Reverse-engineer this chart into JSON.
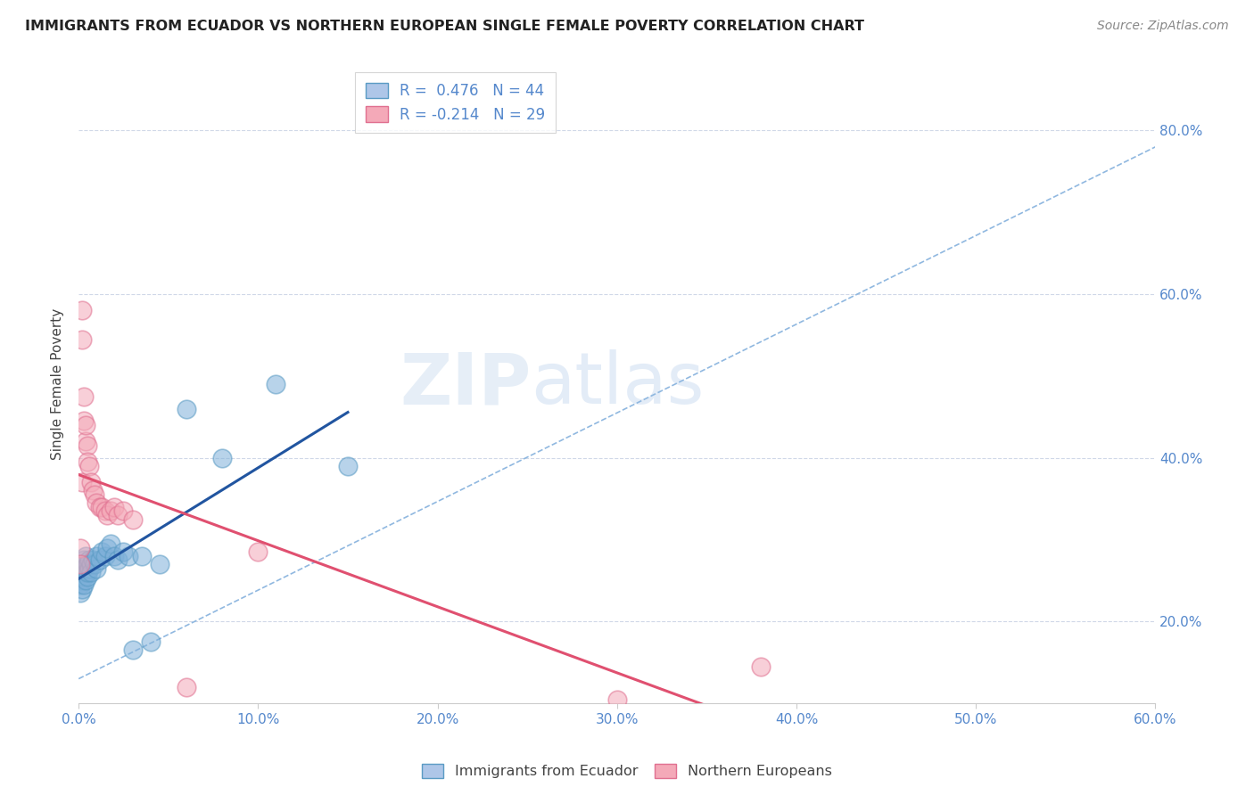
{
  "title": "IMMIGRANTS FROM ECUADOR VS NORTHERN EUROPEAN SINGLE FEMALE POVERTY CORRELATION CHART",
  "source": "Source: ZipAtlas.com",
  "ylabel": "Single Female Poverty",
  "legend1_label": "R =  0.476   N = 44",
  "legend2_label": "R = -0.214   N = 29",
  "legend1_fill_color": "#aec6e8",
  "legend2_fill_color": "#f4a9b8",
  "ecuador_dot_color": "#7eb0d9",
  "ecuador_edge_color": "#5a9bc4",
  "northern_dot_color": "#f4a9b8",
  "northern_edge_color": "#e07090",
  "watermark": "ZIPatlas",
  "xlim": [
    0.0,
    0.6
  ],
  "ylim": [
    0.1,
    0.88
  ],
  "y_ticks": [
    0.2,
    0.4,
    0.6,
    0.8
  ],
  "x_ticks": [
    0.0,
    0.1,
    0.2,
    0.3,
    0.4,
    0.5,
    0.6
  ],
  "ecuador_scatter": [
    [
      0.001,
      0.245
    ],
    [
      0.001,
      0.255
    ],
    [
      0.001,
      0.235
    ],
    [
      0.001,
      0.26
    ],
    [
      0.002,
      0.25
    ],
    [
      0.002,
      0.26
    ],
    [
      0.002,
      0.24
    ],
    [
      0.002,
      0.27
    ],
    [
      0.002,
      0.265
    ],
    [
      0.003,
      0.255
    ],
    [
      0.003,
      0.245
    ],
    [
      0.003,
      0.275
    ],
    [
      0.003,
      0.265
    ],
    [
      0.004,
      0.26
    ],
    [
      0.004,
      0.25
    ],
    [
      0.004,
      0.28
    ],
    [
      0.005,
      0.255
    ],
    [
      0.005,
      0.27
    ],
    [
      0.005,
      0.26
    ],
    [
      0.006,
      0.265
    ],
    [
      0.006,
      0.275
    ],
    [
      0.007,
      0.27
    ],
    [
      0.007,
      0.26
    ],
    [
      0.008,
      0.275
    ],
    [
      0.009,
      0.27
    ],
    [
      0.01,
      0.265
    ],
    [
      0.01,
      0.28
    ],
    [
      0.012,
      0.275
    ],
    [
      0.013,
      0.285
    ],
    [
      0.015,
      0.28
    ],
    [
      0.016,
      0.29
    ],
    [
      0.018,
      0.295
    ],
    [
      0.02,
      0.28
    ],
    [
      0.022,
      0.275
    ],
    [
      0.025,
      0.285
    ],
    [
      0.028,
      0.28
    ],
    [
      0.03,
      0.165
    ],
    [
      0.035,
      0.28
    ],
    [
      0.04,
      0.175
    ],
    [
      0.045,
      0.27
    ],
    [
      0.06,
      0.46
    ],
    [
      0.08,
      0.4
    ],
    [
      0.11,
      0.49
    ],
    [
      0.15,
      0.39
    ]
  ],
  "northern_scatter": [
    [
      0.001,
      0.29
    ],
    [
      0.001,
      0.27
    ],
    [
      0.002,
      0.37
    ],
    [
      0.002,
      0.545
    ],
    [
      0.002,
      0.58
    ],
    [
      0.003,
      0.475
    ],
    [
      0.003,
      0.445
    ],
    [
      0.004,
      0.42
    ],
    [
      0.004,
      0.44
    ],
    [
      0.005,
      0.415
    ],
    [
      0.005,
      0.395
    ],
    [
      0.006,
      0.39
    ],
    [
      0.007,
      0.37
    ],
    [
      0.008,
      0.36
    ],
    [
      0.009,
      0.355
    ],
    [
      0.01,
      0.345
    ],
    [
      0.012,
      0.34
    ],
    [
      0.013,
      0.34
    ],
    [
      0.015,
      0.335
    ],
    [
      0.016,
      0.33
    ],
    [
      0.018,
      0.335
    ],
    [
      0.02,
      0.34
    ],
    [
      0.022,
      0.33
    ],
    [
      0.025,
      0.335
    ],
    [
      0.03,
      0.325
    ],
    [
      0.06,
      0.12
    ],
    [
      0.1,
      0.285
    ],
    [
      0.38,
      0.145
    ],
    [
      0.3,
      0.105
    ]
  ],
  "ecuador_line_color": "#2155a0",
  "northern_line_color": "#e05070",
  "dashed_line_color": "#90b8e0",
  "grid_color": "#d0d8e8",
  "background_color": "#ffffff",
  "tick_color": "#5588cc",
  "title_color": "#222222",
  "source_color": "#888888",
  "ylabel_color": "#444444"
}
